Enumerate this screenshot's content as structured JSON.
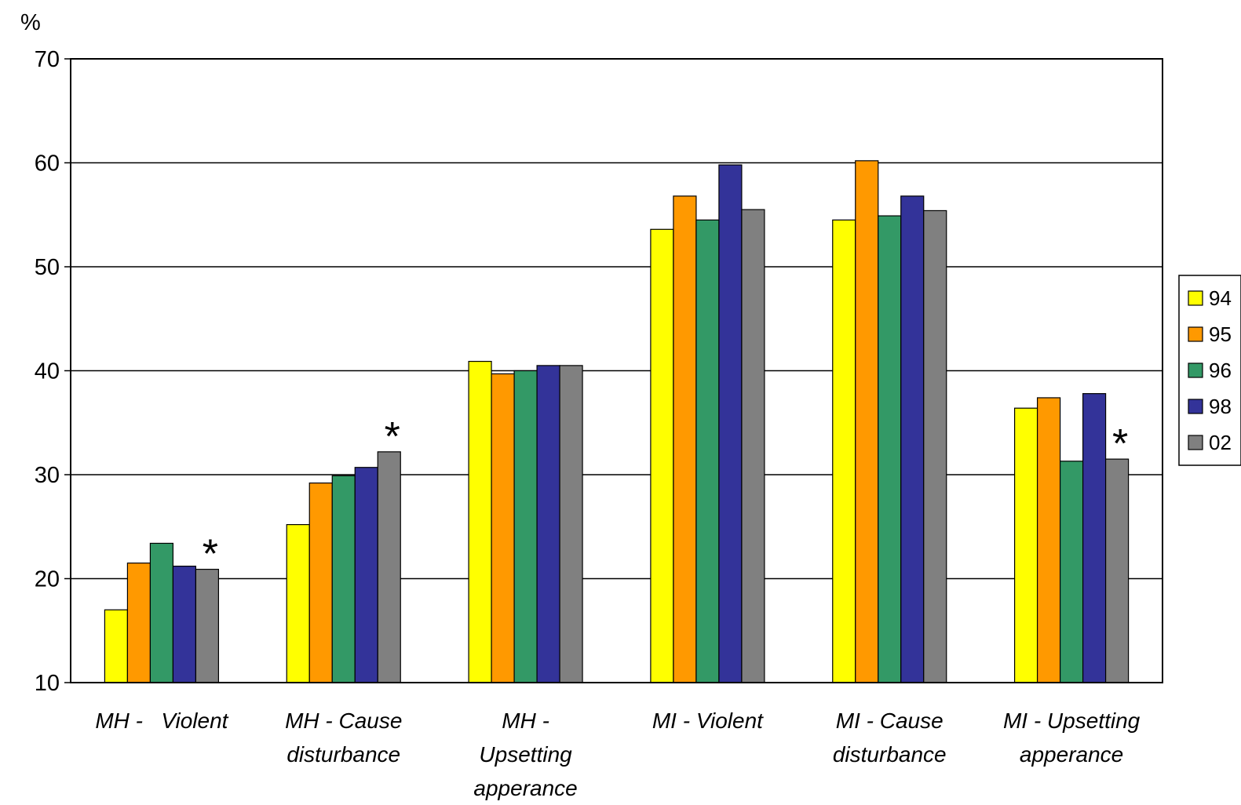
{
  "chart_data": {
    "type": "bar",
    "title": "",
    "xlabel": "",
    "ylabel": "%",
    "ylim": [
      10,
      70
    ],
    "yticks": [
      "10",
      "20",
      "30",
      "40",
      "50",
      "60",
      "70"
    ],
    "grid": true,
    "legend_position": "right",
    "categories": [
      [
        "MH -   Violent"
      ],
      [
        "MH - Cause",
        "disturbance"
      ],
      [
        "MH -",
        "Upsetting",
        "apperance"
      ],
      [
        "MI - Violent"
      ],
      [
        "MI - Cause",
        "disturbance"
      ],
      [
        "MI - Upsetting",
        "apperance"
      ]
    ],
    "series": [
      {
        "name": "94",
        "color": "#FFFF00",
        "values": [
          17.0,
          25.2,
          40.9,
          53.6,
          54.5,
          36.4
        ]
      },
      {
        "name": "95",
        "color": "#FF9900",
        "values": [
          21.5,
          29.2,
          39.7,
          56.8,
          60.2,
          37.4
        ]
      },
      {
        "name": "96",
        "color": "#339966",
        "values": [
          23.4,
          29.9,
          40.0,
          54.5,
          54.9,
          31.3
        ]
      },
      {
        "name": "98",
        "color": "#333399",
        "values": [
          21.2,
          30.7,
          40.5,
          59.8,
          56.8,
          37.8
        ]
      },
      {
        "name": "02",
        "color": "#808080",
        "values": [
          20.9,
          32.2,
          40.5,
          55.5,
          55.4,
          31.5
        ]
      }
    ],
    "annotations": [
      {
        "text": "*",
        "category_index": 0,
        "series_index": 4
      },
      {
        "text": "*",
        "category_index": 1,
        "series_index": 4
      },
      {
        "text": "*",
        "category_index": 5,
        "series_index": 4
      }
    ]
  }
}
